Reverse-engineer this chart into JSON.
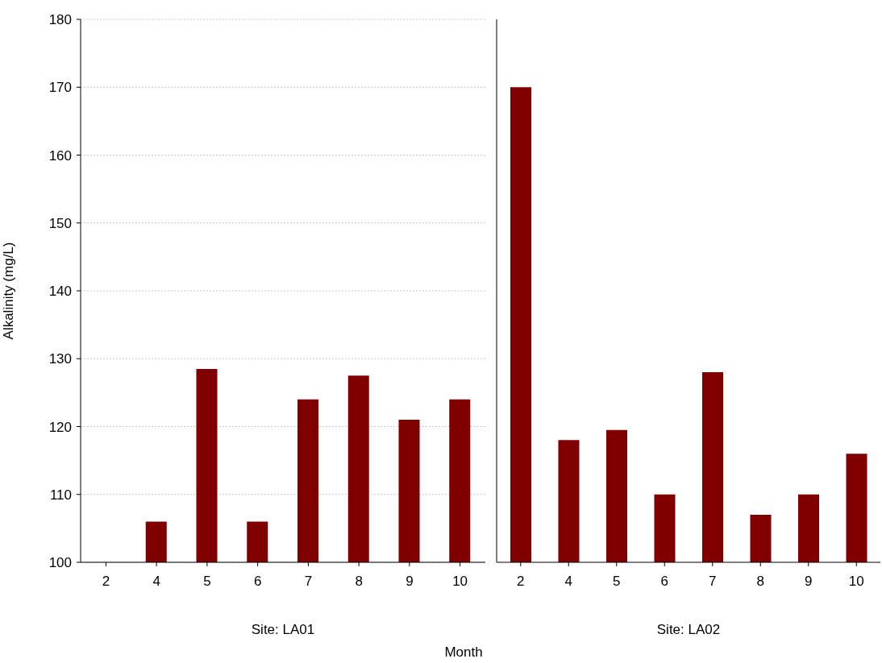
{
  "chart_data": [
    {
      "type": "bar",
      "xlabel": "Site: LA01",
      "ylabel": "Alkalinity (mg/L)",
      "categories": [
        "2",
        "4",
        "5",
        "6",
        "7",
        "8",
        "9",
        "10"
      ],
      "values": [
        null,
        106,
        128.5,
        106,
        124,
        127.5,
        121,
        124
      ],
      "color": "#800000",
      "ylim": [
        100,
        180
      ],
      "yticks": [
        100,
        110,
        120,
        130,
        140,
        150,
        160,
        170,
        180
      ],
      "grid": "y",
      "annotations": [
        "Month"
      ]
    },
    {
      "type": "bar",
      "xlabel": "Site: LA02",
      "categories": [
        "2",
        "4",
        "5",
        "6",
        "7",
        "8",
        "9",
        "10"
      ],
      "values": [
        170,
        118,
        119.5,
        110,
        128,
        107,
        110,
        116
      ],
      "color": "#800000",
      "ylim": [
        100,
        180
      ],
      "yticks": [
        100,
        110,
        120,
        130,
        140,
        150,
        160,
        170,
        180
      ],
      "grid": "y",
      "tick_labels": "x"
    }
  ]
}
